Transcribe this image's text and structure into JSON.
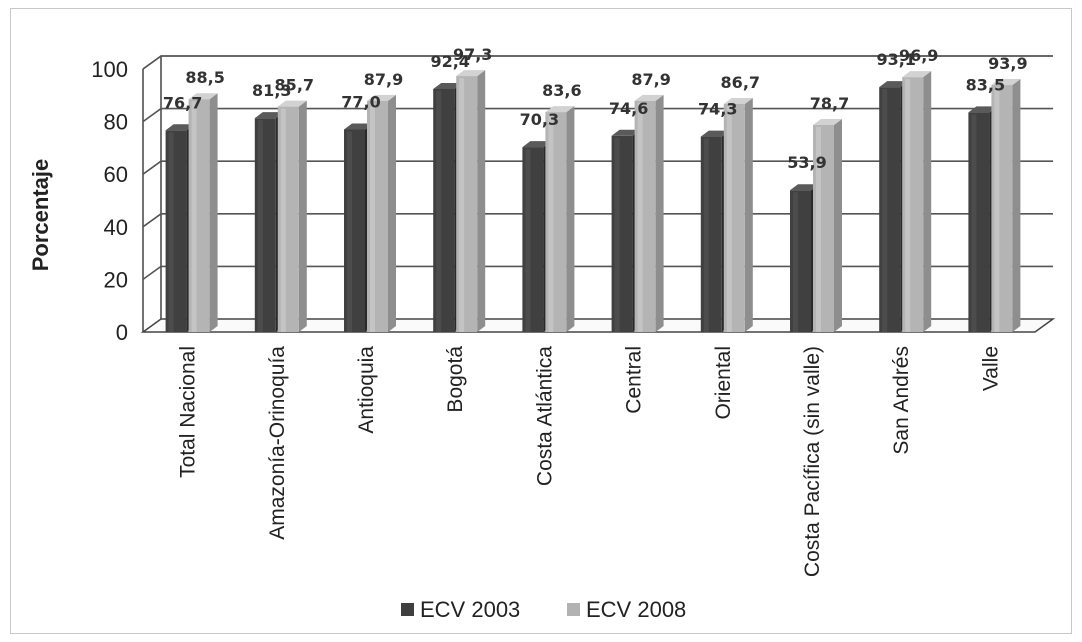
{
  "chart_data": {
    "type": "bar",
    "title": "",
    "xlabel": "",
    "ylabel": "Porcentaje",
    "ylim": [
      0,
      100
    ],
    "yticks": [
      0,
      20,
      40,
      60,
      80,
      100
    ],
    "grid": true,
    "legend_position": "bottom",
    "categories": [
      "Total Nacional",
      "Amazonía-Orinoquía",
      "Antioquia",
      "Bogotá",
      "Costa Atlántica",
      "Central",
      "Oriental",
      "Costa Pacífica (sin valle)",
      "San Andrés",
      "Valle"
    ],
    "series": [
      {
        "name": "ECV 2003",
        "color": "#3f3f3f",
        "values": [
          76.7,
          81.3,
          77.0,
          92.4,
          70.3,
          74.6,
          74.3,
          53.9,
          93.1,
          83.5
        ],
        "labels": [
          "76,7",
          "81,3",
          "77,0",
          "92,4",
          "70,3",
          "74,6",
          "74,3",
          "53,9",
          "93,1",
          "83,5"
        ]
      },
      {
        "name": "ECV 2008",
        "color": "#b2b2b2",
        "values": [
          88.5,
          85.7,
          87.9,
          97.3,
          83.6,
          87.9,
          86.7,
          78.7,
          96.9,
          93.9
        ],
        "labels": [
          "88,5",
          "85,7",
          "87,9",
          "97,3",
          "83,6",
          "87,9",
          "86,7",
          "78,7",
          "96,9",
          "93,9"
        ]
      }
    ]
  }
}
